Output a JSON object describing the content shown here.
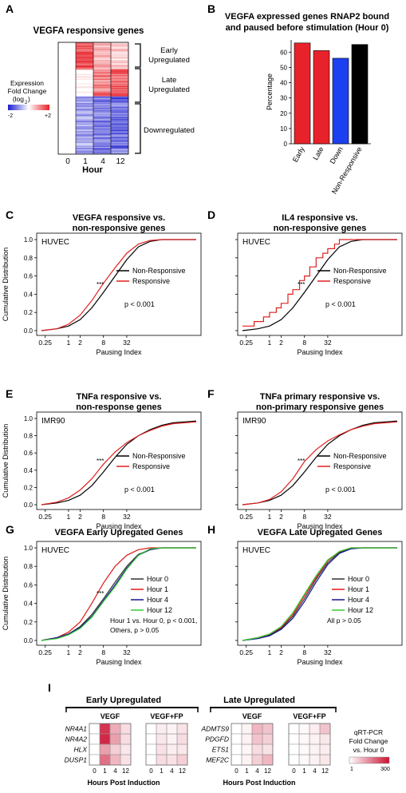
{
  "panels": {
    "A": {
      "letter": "A",
      "title": "VEGFA responsive genes",
      "groups": [
        "Early\nUpregulated",
        "Late\nUpregulated",
        "Downregulated"
      ],
      "legend_lines": [
        "Expression",
        "Fold Change",
        "(log",
        ")"
      ],
      "legend_sub": "2",
      "legend_min": "-2",
      "legend_max": "+2",
      "x_ticks": [
        "0",
        "1",
        "4",
        "12"
      ],
      "x_label": "Hour",
      "colors": {
        "up": "#e8222a",
        "down": "#1c1ccf"
      }
    },
    "B": {
      "letter": "B",
      "title_lines": [
        "VEGFA expressed genes RNAP2 bound",
        "and paused before stimulation (Hour 0)"
      ]
    },
    "C": {
      "letter": "C",
      "title_lines": [
        "VEGFA responsive vs.",
        "non-responsive genes"
      ],
      "cell": "HUVEC",
      "legend": [
        "Non-Responsive",
        "Responsive"
      ],
      "pval": "p < 0.001",
      "stars": "***"
    },
    "D": {
      "letter": "D",
      "title_lines": [
        "IL4 responsive vs.",
        "non-responsive genes"
      ],
      "cell": "HUVEC",
      "legend": [
        "Non-Responsive",
        "Responsive"
      ],
      "pval": "p < 0.001",
      "stars": "***"
    },
    "E": {
      "letter": "E",
      "title_lines": [
        "TNFa responsive vs.",
        "non-response genes"
      ],
      "cell": "IMR90",
      "legend": [
        "Non-Responsive",
        "Responsive"
      ],
      "pval": "p < 0.001",
      "stars": "***"
    },
    "F": {
      "letter": "F",
      "title_lines": [
        "TNFa primary responsive vs.",
        "non-primary responsive genes"
      ],
      "cell": "IMR90",
      "legend": [
        "Non-Responsive",
        "Responsive"
      ],
      "pval": "p < 0.001",
      "stars": "***"
    },
    "G": {
      "letter": "G",
      "title_lines": [
        "VEGFA Early Upregated Genes"
      ],
      "cell": "HUVEC",
      "legend": [
        "Hour 0",
        "Hour 1",
        "Hour 4",
        "Hour 12"
      ],
      "note_lines": [
        "Hour 1 vs. Hour 0, p < 0.001,",
        "Others, p > 0.05"
      ],
      "stars": "***"
    },
    "H": {
      "letter": "H",
      "title_lines": [
        "VEGFA Late Upregated Genes"
      ],
      "cell": "HUVEC",
      "legend": [
        "Hour 0",
        "Hour 1",
        "Hour 4",
        "Hour 12"
      ],
      "note_lines": [
        "All p > 0.05"
      ]
    },
    "I": {
      "letter": "I",
      "early_header": "Early Upregulated",
      "late_header": "Late Upregulated",
      "sub_vegf": "VEGF",
      "sub_vegffp": "VEGF+FP",
      "early_genes": [
        "NR4A1",
        "NR4A2",
        "HLX",
        "DUSP1"
      ],
      "late_genes": [
        "ADMTS9",
        "PDGFD",
        "ETS1",
        "MEF2C"
      ],
      "hour_ticks": [
        "0",
        "1",
        "4",
        "12"
      ],
      "x_label": "Hours Post Induction",
      "legend_lines": [
        "qRT-PCR",
        "Fold Change",
        "vs. Hour 0"
      ],
      "legend_min": "1",
      "legend_max": "300",
      "heat_color": "#cc1133",
      "early_vegf": [
        [
          0,
          0.85,
          0.35,
          0.15
        ],
        [
          0,
          0.9,
          0.4,
          0.15
        ],
        [
          0,
          0.4,
          0.2,
          0.1
        ],
        [
          0,
          0.6,
          0.3,
          0.12
        ]
      ],
      "early_fp": [
        [
          0,
          0.08,
          0.05,
          0.12
        ],
        [
          0,
          0.1,
          0.06,
          0.15
        ],
        [
          0,
          0.12,
          0.07,
          0.1
        ],
        [
          0,
          0.15,
          0.12,
          0.2
        ]
      ],
      "late_vegf": [
        [
          0,
          0.05,
          0.3,
          0.25
        ],
        [
          0,
          0.06,
          0.25,
          0.2
        ],
        [
          0,
          0.04,
          0.15,
          0.12
        ],
        [
          0,
          0.05,
          0.2,
          0.3
        ]
      ],
      "late_fp": [
        [
          0,
          0.03,
          0.08,
          0.25
        ],
        [
          0,
          0.03,
          0.06,
          0.1
        ],
        [
          0,
          0.02,
          0.05,
          0.08
        ],
        [
          0,
          0.03,
          0.06,
          0.1
        ]
      ]
    }
  },
  "chart_data": [
    {
      "panel": "B",
      "type": "bar",
      "categories": [
        "Early",
        "Late",
        "Down",
        "Non-Responsive"
      ],
      "values": [
        66,
        61,
        56,
        65
      ],
      "colors": [
        "#e8222a",
        "#e8222a",
        "#1c3ff0",
        "#000000"
      ],
      "ylabel": "Percentage",
      "ylim": [
        0,
        68
      ],
      "yticks": [
        0,
        10,
        20,
        30,
        40,
        50,
        60
      ]
    },
    {
      "panel": "C",
      "type": "line",
      "xlabel": "Pausing Index",
      "ylabel": "Cumulative Distribution",
      "xticks": [
        "0.25",
        "1",
        "2",
        "8",
        "32"
      ],
      "xtick_vals": [
        0.25,
        1,
        2,
        8,
        32
      ],
      "yticks": [
        "0.0",
        "0.2",
        "0.4",
        "0.6",
        "0.8",
        "1.0"
      ],
      "xlim": [
        0.2,
        2000
      ],
      "ylim": [
        0,
        1
      ],
      "series": [
        {
          "name": "Non-Responsive",
          "color": "#000000",
          "x": [
            0.2,
            0.5,
            1,
            2,
            4,
            8,
            16,
            32,
            64,
            128,
            256,
            2000
          ],
          "y": [
            0,
            0.02,
            0.05,
            0.12,
            0.25,
            0.42,
            0.6,
            0.78,
            0.92,
            0.98,
            1,
            1
          ]
        },
        {
          "name": "Responsive",
          "color": "#e02020",
          "x": [
            0.2,
            0.5,
            1,
            2,
            4,
            8,
            16,
            32,
            64,
            128,
            256,
            2000
          ],
          "y": [
            0,
            0.02,
            0.07,
            0.17,
            0.33,
            0.52,
            0.69,
            0.85,
            0.95,
            0.99,
            1,
            1
          ]
        }
      ]
    },
    {
      "panel": "D",
      "type": "line",
      "xlabel": "Pausing Index",
      "ylabel": "",
      "xticks": [
        "0.25",
        "1",
        "2",
        "8",
        "32"
      ],
      "xtick_vals": [
        0.25,
        1,
        2,
        8,
        32
      ],
      "xlim": [
        0.2,
        2000
      ],
      "ylim": [
        0,
        1
      ],
      "series": [
        {
          "name": "Non-Responsive",
          "color": "#000000",
          "x": [
            0.2,
            0.5,
            1,
            2,
            4,
            8,
            16,
            32,
            64,
            128,
            256,
            2000
          ],
          "y": [
            0,
            0.02,
            0.05,
            0.12,
            0.25,
            0.42,
            0.6,
            0.78,
            0.92,
            0.98,
            1,
            1
          ]
        },
        {
          "name": "Responsive",
          "color": "#e02020",
          "step": true,
          "x": [
            0.2,
            0.4,
            0.7,
            1,
            1.5,
            2,
            3,
            4,
            6,
            8,
            11,
            16,
            24,
            32,
            48,
            64,
            2000
          ],
          "y": [
            0.05,
            0.1,
            0.15,
            0.2,
            0.25,
            0.3,
            0.4,
            0.45,
            0.55,
            0.6,
            0.7,
            0.8,
            0.85,
            0.9,
            0.95,
            1,
            1
          ]
        }
      ]
    },
    {
      "panel": "E",
      "type": "line",
      "xlabel": "Pausing Index",
      "ylabel": "Cumulative Distribution",
      "xticks": [
        "0.25",
        "1",
        "2",
        "8",
        "32"
      ],
      "xtick_vals": [
        0.25,
        1,
        2,
        8,
        32
      ],
      "xlim": [
        0.2,
        2000
      ],
      "ylim": [
        0,
        1
      ],
      "series": [
        {
          "name": "Non-Responsive",
          "color": "#000000",
          "x": [
            0.2,
            0.5,
            1,
            2,
            4,
            8,
            16,
            32,
            64,
            128,
            256,
            512,
            2000
          ],
          "y": [
            0,
            0.02,
            0.05,
            0.11,
            0.22,
            0.38,
            0.55,
            0.7,
            0.8,
            0.87,
            0.92,
            0.95,
            0.97
          ]
        },
        {
          "name": "Responsive",
          "color": "#e02020",
          "x": [
            0.2,
            0.5,
            1,
            2,
            4,
            8,
            16,
            32,
            64,
            128,
            256,
            512,
            2000
          ],
          "y": [
            0,
            0.03,
            0.08,
            0.17,
            0.3,
            0.47,
            0.61,
            0.72,
            0.8,
            0.86,
            0.91,
            0.94,
            0.96
          ]
        }
      ]
    },
    {
      "panel": "F",
      "type": "line",
      "xlabel": "Pausing Index",
      "ylabel": "",
      "xticks": [
        "0.25",
        "1",
        "2",
        "8",
        "32"
      ],
      "xtick_vals": [
        0.25,
        1,
        2,
        8,
        32
      ],
      "xlim": [
        0.2,
        2000
      ],
      "ylim": [
        0,
        1
      ],
      "series": [
        {
          "name": "Non-Responsive",
          "color": "#000000",
          "x": [
            0.2,
            0.5,
            1,
            2,
            4,
            8,
            16,
            32,
            64,
            128,
            256,
            512,
            2000
          ],
          "y": [
            0,
            0.02,
            0.05,
            0.11,
            0.22,
            0.38,
            0.55,
            0.7,
            0.8,
            0.87,
            0.92,
            0.95,
            0.97
          ]
        },
        {
          "name": "Responsive",
          "color": "#e02020",
          "x": [
            0.2,
            0.5,
            1,
            2,
            4,
            8,
            16,
            32,
            64,
            128,
            256,
            512,
            2000
          ],
          "y": [
            0,
            0.02,
            0.06,
            0.15,
            0.3,
            0.5,
            0.64,
            0.74,
            0.81,
            0.87,
            0.91,
            0.94,
            0.96
          ]
        }
      ]
    },
    {
      "panel": "G",
      "type": "line",
      "xlabel": "Pausing Index",
      "ylabel": "Cumulative Distribution",
      "xticks": [
        "0.25",
        "1",
        "2",
        "8",
        "32"
      ],
      "xtick_vals": [
        0.25,
        1,
        2,
        8,
        32
      ],
      "xlim": [
        0.2,
        2000
      ],
      "ylim": [
        0,
        1
      ],
      "series": [
        {
          "name": "Hour 0",
          "color": "#333333",
          "x": [
            0.2,
            0.5,
            1,
            2,
            4,
            8,
            16,
            32,
            64,
            128,
            256,
            2000
          ],
          "y": [
            0,
            0.03,
            0.07,
            0.15,
            0.28,
            0.45,
            0.63,
            0.8,
            0.93,
            0.98,
            1,
            1
          ]
        },
        {
          "name": "Hour 1",
          "color": "#e01a1a",
          "x": [
            0.2,
            0.5,
            1,
            2,
            4,
            8,
            16,
            32,
            64,
            128,
            256,
            2000
          ],
          "y": [
            0,
            0.03,
            0.09,
            0.2,
            0.4,
            0.62,
            0.8,
            0.92,
            0.98,
            1,
            1,
            1
          ]
        },
        {
          "name": "Hour 4",
          "color": "#14148c",
          "x": [
            0.2,
            0.5,
            1,
            2,
            4,
            8,
            16,
            32,
            64,
            128,
            256,
            2000
          ],
          "y": [
            0,
            0.03,
            0.07,
            0.14,
            0.26,
            0.43,
            0.6,
            0.78,
            0.92,
            0.98,
            1,
            1
          ]
        },
        {
          "name": "Hour 12",
          "color": "#33cc33",
          "x": [
            0.2,
            0.5,
            1,
            2,
            4,
            8,
            16,
            32,
            64,
            128,
            256,
            2000
          ],
          "y": [
            0,
            0.02,
            0.06,
            0.13,
            0.25,
            0.42,
            0.58,
            0.77,
            0.92,
            0.99,
            1,
            1
          ]
        }
      ]
    },
    {
      "panel": "H",
      "type": "line",
      "xlabel": "Pausing Index",
      "ylabel": "",
      "xticks": [
        "0.25",
        "1",
        "2",
        "8",
        "32"
      ],
      "xtick_vals": [
        0.25,
        1,
        2,
        8,
        32
      ],
      "xlim": [
        0.2,
        2000
      ],
      "ylim": [
        0,
        1
      ],
      "series": [
        {
          "name": "Hour 0",
          "color": "#333333",
          "x": [
            0.2,
            0.5,
            1,
            2,
            4,
            8,
            16,
            32,
            64,
            128,
            256,
            2000
          ],
          "y": [
            0,
            0.03,
            0.06,
            0.13,
            0.26,
            0.45,
            0.66,
            0.84,
            0.95,
            0.99,
            1,
            1
          ]
        },
        {
          "name": "Hour 1",
          "color": "#e01a1a",
          "x": [
            0.2,
            0.5,
            1,
            2,
            4,
            8,
            16,
            32,
            64,
            128,
            256,
            2000
          ],
          "y": [
            0,
            0.03,
            0.07,
            0.14,
            0.28,
            0.48,
            0.68,
            0.86,
            0.96,
            1,
            1,
            1
          ]
        },
        {
          "name": "Hour 4",
          "color": "#14148c",
          "x": [
            0.2,
            0.5,
            1,
            2,
            4,
            8,
            16,
            32,
            64,
            128,
            256,
            2000
          ],
          "y": [
            0,
            0.02,
            0.05,
            0.12,
            0.24,
            0.42,
            0.63,
            0.82,
            0.94,
            0.99,
            1,
            1
          ]
        },
        {
          "name": "Hour 12",
          "color": "#33cc33",
          "x": [
            0.2,
            0.5,
            1,
            2,
            4,
            8,
            16,
            32,
            64,
            128,
            256,
            2000
          ],
          "y": [
            0,
            0.03,
            0.07,
            0.15,
            0.3,
            0.5,
            0.7,
            0.87,
            0.96,
            1,
            1,
            1
          ]
        }
      ]
    }
  ]
}
